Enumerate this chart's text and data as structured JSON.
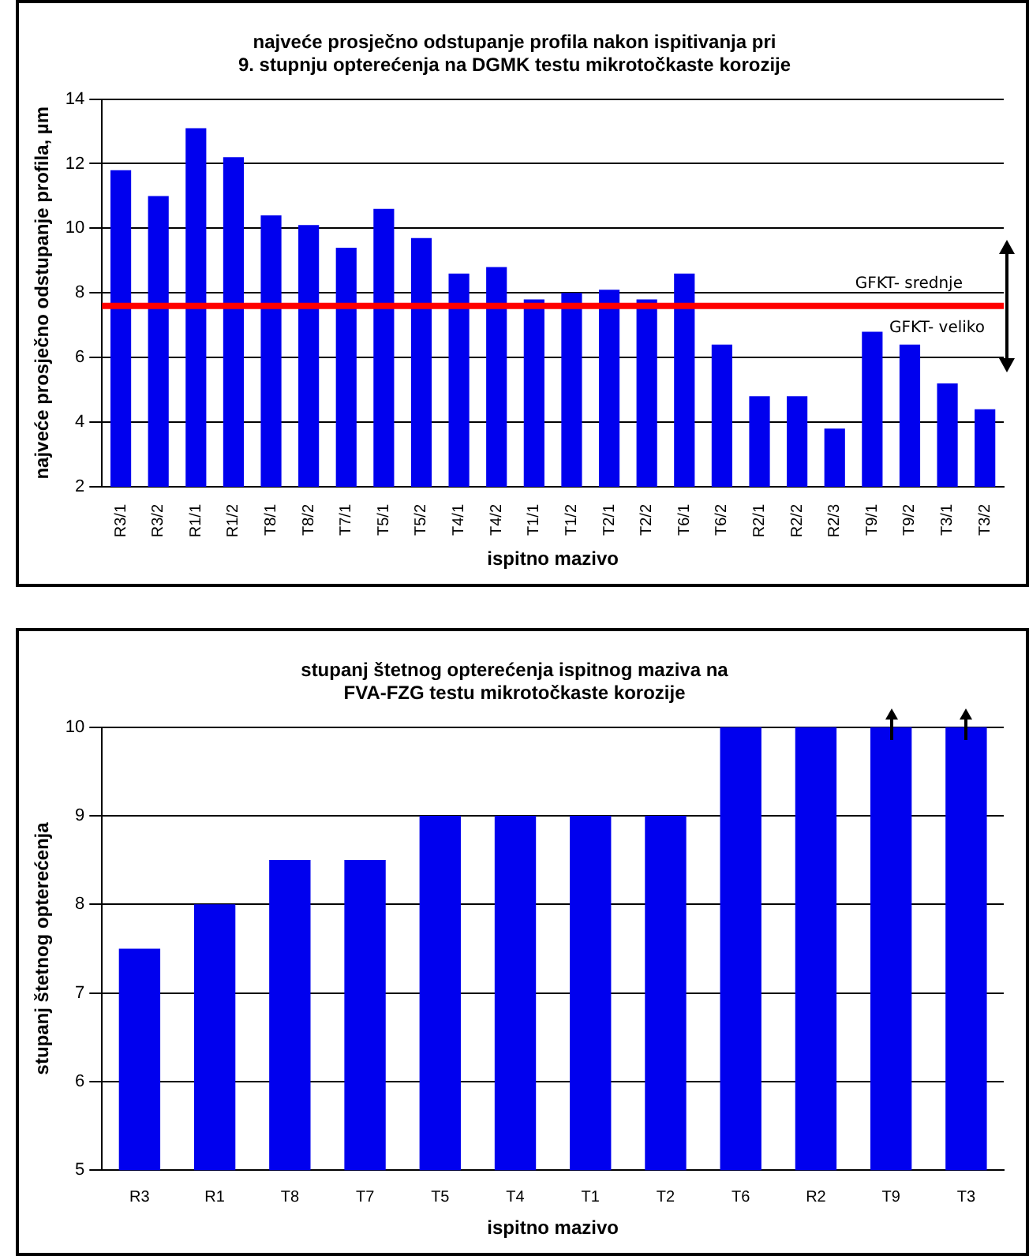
{
  "chart_data": [
    {
      "type": "bar",
      "title": "najveće prosječno odstupanje profila nakon ispitivanja pri\n9. stupnju opterećenja na DGMK testu mikrotočkaste korozije",
      "xlabel": "ispitno mazivo",
      "ylabel": "najveće prosječno odstupanje profila, µm",
      "categories": [
        "R3/1",
        "R3/2",
        "R1/1",
        "R1/2",
        "T8/1",
        "T8/2",
        "T7/1",
        "T5/1",
        "T5/2",
        "T4/1",
        "T4/2",
        "T1/1",
        "T1/2",
        "T2/1",
        "T2/2",
        "T6/1",
        "T6/2",
        "R2/1",
        "R2/2",
        "R2/3",
        "T9/1",
        "T9/2",
        "T3/1",
        "T3/2"
      ],
      "values": [
        11.8,
        11.0,
        13.1,
        12.2,
        10.4,
        10.1,
        9.4,
        10.6,
        9.7,
        8.6,
        8.8,
        7.8,
        8.0,
        8.1,
        7.8,
        8.6,
        6.4,
        4.8,
        4.8,
        3.8,
        6.8,
        6.4,
        5.2,
        4.4
      ],
      "color": "#0000ee",
      "ylim": [
        2,
        14
      ],
      "yticks": [
        2,
        4,
        6,
        8,
        10,
        12,
        14
      ],
      "grid": "y",
      "ref_lines": [
        {
          "axis": "y",
          "value": 7.6,
          "color": "#ff0000"
        }
      ],
      "annotations": [
        "GFKT- srednje",
        "GFKT- veliko"
      ]
    },
    {
      "type": "bar",
      "title": "stupanj štetnog opterećenja ispitnog maziva na\nFVA-FZG testu mikrotočkaste korozije",
      "xlabel": "ispitno mazivo",
      "ylabel": "stupanj štetnog opterećenja",
      "categories": [
        "R3",
        "R1",
        "T8",
        "T7",
        "T5",
        "T4",
        "T1",
        "T2",
        "T6",
        "R2",
        "T9",
        "T3"
      ],
      "values": [
        7.5,
        8,
        8.5,
        8.5,
        9,
        9,
        9,
        9,
        10,
        10,
        10,
        10
      ],
      "color": "#0000ee",
      "ylim": [
        5,
        10
      ],
      "yticks": [
        5,
        6,
        7,
        8,
        9,
        10
      ],
      "grid": "y"
    }
  ]
}
